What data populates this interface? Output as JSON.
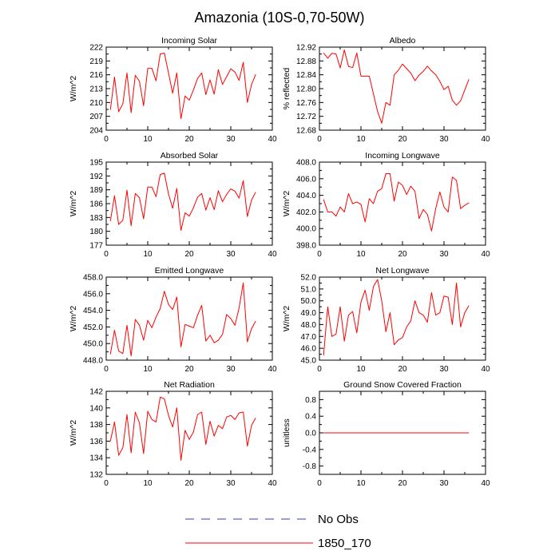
{
  "figure": {
    "title": "Amazonia (10S-0,70-50W)"
  },
  "legend": [
    {
      "label": "No Obs",
      "color": "#3b3bb5",
      "style": "dashed"
    },
    {
      "label": "1850_170",
      "color": "#ff0000",
      "style": "solid"
    }
  ],
  "chart_data": [
    {
      "type": "line",
      "title": "Incoming Solar",
      "ylabel": "W/m^2",
      "xlim": [
        0,
        40
      ],
      "xticks": [
        "0",
        "10",
        "20",
        "30",
        "40"
      ],
      "ylim": [
        204,
        222
      ],
      "yticks": [
        "204",
        "207",
        "210",
        "213",
        "216",
        "219",
        "222"
      ],
      "x": [
        1,
        2,
        3,
        4,
        5,
        6,
        7,
        8,
        9,
        10,
        11,
        12,
        13,
        14,
        15,
        16,
        17,
        18,
        19,
        20,
        21,
        22,
        23,
        24,
        25,
        26,
        27,
        28,
        29,
        30,
        31,
        32,
        33,
        34,
        35,
        36
      ],
      "series": [
        {
          "name": "1850_170",
          "color": "#ff0000",
          "values": [
            208.4,
            215.5,
            208.0,
            209.7,
            216.4,
            207.8,
            215.9,
            214.6,
            209.3,
            217.4,
            217.4,
            214.7,
            220.5,
            220.7,
            216.4,
            212.0,
            216.4,
            206.5,
            211.4,
            210.5,
            212.7,
            215.2,
            216.4,
            211.7,
            214.9,
            211.8,
            217.1,
            213.9,
            215.6,
            217.3,
            216.6,
            214.8,
            218.7,
            210.0,
            213.9,
            216.1
          ]
        }
      ]
    },
    {
      "type": "line",
      "title": "Albedo",
      "ylabel": "% reflected",
      "xlim": [
        0,
        40
      ],
      "xticks": [
        "0",
        "10",
        "20",
        "30",
        "40"
      ],
      "ylim": [
        12.68,
        12.92
      ],
      "yticks": [
        "12.68",
        "12.72",
        "12.76",
        "12.80",
        "12.84",
        "12.88",
        "12.92"
      ],
      "x": [
        1,
        2,
        3,
        4,
        5,
        6,
        7,
        8,
        9,
        10,
        11,
        12,
        13,
        14,
        15,
        16,
        17,
        18,
        19,
        20,
        21,
        22,
        23,
        24,
        25,
        26,
        27,
        28,
        29,
        30,
        31,
        32,
        33,
        34,
        35,
        36
      ],
      "series": [
        {
          "name": "1850_170",
          "color": "#ff0000",
          "values": [
            12.903,
            12.888,
            12.902,
            12.9,
            12.86,
            12.912,
            12.864,
            12.861,
            12.903,
            12.836,
            12.836,
            12.836,
            12.785,
            12.734,
            12.7,
            12.76,
            12.752,
            12.84,
            12.853,
            12.871,
            12.858,
            12.845,
            12.823,
            12.839,
            12.85,
            12.865,
            12.851,
            12.84,
            12.821,
            12.797,
            12.807,
            12.767,
            12.752,
            12.765,
            12.796,
            12.827
          ]
        }
      ]
    },
    {
      "type": "line",
      "title": "Absorbed Solar",
      "ylabel": "W/m^2",
      "xlim": [
        0,
        40
      ],
      "xticks": [
        "0",
        "10",
        "20",
        "30",
        "40"
      ],
      "ylim": [
        177,
        195
      ],
      "yticks": [
        "177",
        "180",
        "183",
        "186",
        "189",
        "192",
        "195"
      ],
      "x": [
        1,
        2,
        3,
        4,
        5,
        6,
        7,
        8,
        9,
        10,
        11,
        12,
        13,
        14,
        15,
        16,
        17,
        18,
        19,
        20,
        21,
        22,
        23,
        24,
        25,
        26,
        27,
        28,
        29,
        30,
        31,
        32,
        33,
        34,
        35,
        36
      ],
      "series": [
        {
          "name": "1850_170",
          "color": "#ff0000",
          "values": [
            182.2,
            187.7,
            181.5,
            182.4,
            188.9,
            181.2,
            188.2,
            187.3,
            182.7,
            189.6,
            189.6,
            187.5,
            192.3,
            192.6,
            188.1,
            185.0,
            189.3,
            180.2,
            184.0,
            183.3,
            185.1,
            187.4,
            188.2,
            184.6,
            187.3,
            184.7,
            188.8,
            186.4,
            188.0,
            189.2,
            188.7,
            187.2,
            191.0,
            183.2,
            186.8,
            188.5
          ]
        }
      ]
    },
    {
      "type": "line",
      "title": "Incoming Longwave",
      "ylabel": "W/m^2",
      "xlim": [
        0,
        40
      ],
      "xticks": [
        "0",
        "10",
        "20",
        "30",
        "40"
      ],
      "ylim": [
        398.0,
        408.0
      ],
      "yticks": [
        "398.0",
        "400.0",
        "402.0",
        "404.0",
        "406.0",
        "408.0"
      ],
      "x": [
        1,
        2,
        3,
        4,
        5,
        6,
        7,
        8,
        9,
        10,
        11,
        12,
        13,
        14,
        15,
        16,
        17,
        18,
        19,
        20,
        21,
        22,
        23,
        24,
        25,
        26,
        27,
        28,
        29,
        30,
        31,
        32,
        33,
        34,
        35,
        36
      ],
      "series": [
        {
          "name": "1850_170",
          "color": "#ff0000",
          "values": [
            403.5,
            402.0,
            402.0,
            401.5,
            402.6,
            402.0,
            404.2,
            403.0,
            403.2,
            402.9,
            400.8,
            403.6,
            403.0,
            404.5,
            404.8,
            406.6,
            406.6,
            403.3,
            405.6,
            405.2,
            404.1,
            405.1,
            404.5,
            401.2,
            402.3,
            401.7,
            399.7,
            402.4,
            404.4,
            402.6,
            402.0,
            406.2,
            405.8,
            402.4,
            402.8,
            403.1
          ]
        }
      ]
    },
    {
      "type": "line",
      "title": "Emitted Longwave",
      "ylabel": "W/m^2",
      "xlim": [
        0,
        40
      ],
      "xticks": [
        "0",
        "10",
        "20",
        "30",
        "40"
      ],
      "ylim": [
        448.0,
        458.0
      ],
      "yticks": [
        "448.0",
        "450.0",
        "452.0",
        "454.0",
        "456.0",
        "458.0"
      ],
      "x": [
        1,
        2,
        3,
        4,
        5,
        6,
        7,
        8,
        9,
        10,
        11,
        12,
        13,
        14,
        15,
        16,
        17,
        18,
        19,
        20,
        21,
        22,
        23,
        24,
        25,
        26,
        27,
        28,
        29,
        30,
        31,
        32,
        33,
        34,
        35,
        36
      ],
      "series": [
        {
          "name": "1850_170",
          "color": "#ff0000",
          "values": [
            448.7,
            451.6,
            449.1,
            448.8,
            452.2,
            448.5,
            452.9,
            452.2,
            450.4,
            452.8,
            451.9,
            453.2,
            454.2,
            456.3,
            454.7,
            454.1,
            455.6,
            449.6,
            452.3,
            452.1,
            451.9,
            453.4,
            454.6,
            450.3,
            451.0,
            450.1,
            450.4,
            451.1,
            453.5,
            453.0,
            452.2,
            454.3,
            457.3,
            450.2,
            451.8,
            452.7
          ]
        }
      ]
    },
    {
      "type": "line",
      "title": "Net Longwave",
      "ylabel": "W/m^2",
      "xlim": [
        0,
        40
      ],
      "xticks": [
        "0",
        "10",
        "20",
        "30",
        "40"
      ],
      "ylim": [
        45.0,
        52.0
      ],
      "yticks": [
        "45.0",
        "46.0",
        "47.0",
        "48.0",
        "49.0",
        "50.0",
        "51.0",
        "52.0"
      ],
      "x": [
        1,
        2,
        3,
        4,
        5,
        6,
        7,
        8,
        9,
        10,
        11,
        12,
        13,
        14,
        15,
        16,
        17,
        18,
        19,
        20,
        21,
        22,
        23,
        24,
        25,
        26,
        27,
        28,
        29,
        30,
        31,
        32,
        33,
        34,
        35,
        36
      ],
      "series": [
        {
          "name": "1850_170",
          "color": "#ff0000",
          "values": [
            45.4,
            49.5,
            47.0,
            47.2,
            49.5,
            46.6,
            48.8,
            49.1,
            47.3,
            49.9,
            50.9,
            49.2,
            51.2,
            51.8,
            50.0,
            47.4,
            49.0,
            46.3,
            46.7,
            46.9,
            47.8,
            48.3,
            50.0,
            49.0,
            48.8,
            48.2,
            50.7,
            48.8,
            49.0,
            50.4,
            50.3,
            48.0,
            51.5,
            47.8,
            49.0,
            49.6
          ]
        }
      ]
    },
    {
      "type": "line",
      "title": "Net Radiation",
      "ylabel": "W/m^2",
      "xlim": [
        0,
        40
      ],
      "xticks": [
        "0",
        "10",
        "20",
        "30",
        "40"
      ],
      "ylim": [
        132,
        142
      ],
      "yticks": [
        "132",
        "134",
        "136",
        "138",
        "140",
        "142"
      ],
      "x": [
        1,
        2,
        3,
        4,
        5,
        6,
        7,
        8,
        9,
        10,
        11,
        12,
        13,
        14,
        15,
        16,
        17,
        18,
        19,
        20,
        21,
        22,
        23,
        24,
        25,
        26,
        27,
        28,
        29,
        30,
        31,
        32,
        33,
        34,
        35,
        36
      ],
      "series": [
        {
          "name": "1850_170",
          "color": "#ff0000",
          "values": [
            136.0,
            138.3,
            134.3,
            135.2,
            139.2,
            134.6,
            139.5,
            138.2,
            134.5,
            139.6,
            138.6,
            138.3,
            141.3,
            141.1,
            139.1,
            137.7,
            140.0,
            133.7,
            137.3,
            136.2,
            137.1,
            139.2,
            139.5,
            135.6,
            138.4,
            136.6,
            137.9,
            137.5,
            138.9,
            139.1,
            138.6,
            139.4,
            139.5,
            135.4,
            137.9,
            138.8
          ]
        }
      ]
    },
    {
      "type": "line",
      "title": "Ground Snow Covered Fraction",
      "ylabel": "unitless",
      "xlim": [
        0,
        40
      ],
      "xticks": [
        "0",
        "10",
        "20",
        "30",
        "40"
      ],
      "ylim": [
        -1.0,
        1.0
      ],
      "yticks": [
        "-0.8",
        "-0.4",
        "0.0",
        "0.4",
        "0.8"
      ],
      "ytick_values": [
        -0.8,
        -0.4,
        0.0,
        0.4,
        0.8
      ],
      "x": [
        1,
        2,
        3,
        4,
        5,
        6,
        7,
        8,
        9,
        10,
        11,
        12,
        13,
        14,
        15,
        16,
        17,
        18,
        19,
        20,
        21,
        22,
        23,
        24,
        25,
        26,
        27,
        28,
        29,
        30,
        31,
        32,
        33,
        34,
        35,
        36
      ],
      "series": [
        {
          "name": "1850_170",
          "color": "#ff0000",
          "values": [
            0,
            0,
            0,
            0,
            0,
            0,
            0,
            0,
            0,
            0,
            0,
            0,
            0,
            0,
            0,
            0,
            0,
            0,
            0,
            0,
            0,
            0,
            0,
            0,
            0,
            0,
            0,
            0,
            0,
            0,
            0,
            0,
            0,
            0,
            0,
            0
          ]
        }
      ]
    }
  ]
}
